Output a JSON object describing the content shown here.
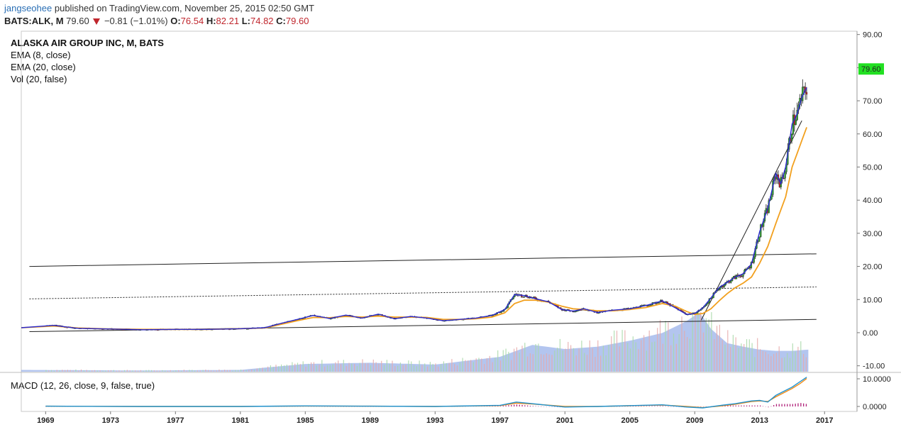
{
  "header": {
    "user": "jangseohee",
    "published": "published on TradingView.com, November 25, 2015 02:50 GMT"
  },
  "symbol": {
    "ticker": "BATS:ALK, M",
    "last": "79.60",
    "change": "−0.81 (−1.01%)",
    "o_label": "O:",
    "o": "76.54",
    "h_label": "H:",
    "h": "82.21",
    "l_label": "L:",
    "l": "74.82",
    "c_label": "C:",
    "c": "79.60"
  },
  "legend": {
    "title": "ALASKA AIR GROUP INC, M, BATS",
    "ema8": "EMA (8, close)",
    "ema20": "EMA (20, close)",
    "vol": "Vol (20, false)"
  },
  "macd_label": "MACD (12, 26, close, 9, false, true)",
  "colors": {
    "up": "#2e9c2e",
    "down": "#c0262d",
    "ema8": "#2b2bd0",
    "ema20": "#f2a01e",
    "volume_area": "#8aa6e6",
    "price_badge": "#22e022"
  },
  "chart_data": [
    {
      "type": "line",
      "title": "ALASKA AIR GROUP INC, M, BATS",
      "price_tag": "79.60",
      "ylim": [
        -12,
        91
      ],
      "xlim": [
        1967.5,
        2019
      ],
      "y_ticks": [
        "90.00",
        "80.00",
        "70.00",
        "60.00",
        "50.00",
        "40.00",
        "30.00",
        "20.00",
        "10.00",
        "0.00",
        "-10.00"
      ],
      "x_ticks": [
        "1969",
        "1973",
        "1977",
        "1981",
        "1985",
        "1989",
        "1993",
        "1997",
        "2001",
        "2005",
        "2009",
        "2013",
        "2017"
      ],
      "x": [
        1967.5,
        1969.5,
        1971,
        1973,
        1975,
        1977,
        1979,
        1981,
        1982.5,
        1983.5,
        1984.5,
        1985.5,
        1986.5,
        1987.5,
        1988.5,
        1989.5,
        1990.5,
        1991.5,
        1992.5,
        1993.5,
        1994.5,
        1995.5,
        1996.5,
        1997.3,
        1997.9,
        1998.5,
        1999.2,
        2000,
        2000.8,
        2001.5,
        2002.2,
        2003,
        2004,
        2005,
        2006,
        2007,
        2007.8,
        2008.5,
        2009,
        2009.5,
        2010,
        2010.5,
        2011,
        2011.5,
        2012,
        2012.5,
        2013,
        2013.5,
        2014,
        2014.3,
        2014.6,
        2015,
        2015.3,
        2015.6,
        2015.9
      ],
      "series": [
        {
          "name": "EMA (8, close)",
          "values": [
            1.5,
            2.2,
            1.3,
            1.1,
            0.9,
            1.0,
            1.0,
            1.2,
            1.5,
            2.8,
            4.0,
            5.2,
            4.3,
            5.3,
            4.4,
            5.6,
            4.2,
            4.9,
            4.4,
            3.6,
            4.0,
            4.4,
            5.2,
            7.0,
            11.5,
            11.2,
            10.2,
            9.3,
            7.0,
            6.5,
            7.2,
            6.1,
            6.8,
            7.2,
            8.2,
            9.6,
            7.5,
            5.5,
            5.8,
            7.5,
            10.5,
            13.6,
            15.2,
            16.8,
            17.8,
            20.8,
            30.5,
            37.5,
            48.0,
            45.0,
            50.0,
            63.0,
            66.0,
            71.0,
            74.0
          ]
        },
        {
          "name": "EMA (20, close)",
          "values": [
            1.5,
            2.0,
            1.4,
            1.1,
            1.0,
            1.0,
            1.0,
            1.2,
            1.4,
            2.5,
            3.6,
            4.6,
            4.5,
            4.9,
            4.7,
            5.0,
            4.7,
            4.7,
            4.6,
            4.0,
            4.0,
            4.2,
            4.7,
            6.0,
            8.8,
            9.8,
            9.8,
            9.2,
            8.0,
            7.2,
            7.0,
            6.6,
            6.6,
            7.0,
            7.6,
            8.8,
            8.0,
            6.4,
            5.5,
            5.8,
            7.2,
            9.6,
            11.8,
            13.6,
            15.0,
            16.8,
            21.0,
            26.0,
            33.0,
            37.0,
            41.0,
            50.0,
            54.0,
            58.0,
            62.0
          ]
        }
      ]
    },
    {
      "type": "area",
      "title": "Vol (20, false)",
      "x": [
        1967.5,
        1975,
        1981,
        1983,
        1985,
        1989,
        1993,
        1997,
        1999,
        2001,
        2003,
        2005,
        2007,
        2008.5,
        2009.3,
        2010,
        2011,
        2012,
        2013,
        2014,
        2015,
        2016
      ],
      "values": [
        0.03,
        0.02,
        0.03,
        0.08,
        0.13,
        0.15,
        0.12,
        0.25,
        0.45,
        0.38,
        0.42,
        0.52,
        0.65,
        0.85,
        1.0,
        0.72,
        0.48,
        0.42,
        0.37,
        0.35,
        0.35,
        0.37
      ]
    },
    {
      "type": "line",
      "title": "MACD (12, 26, close, 9, false, true)",
      "y_ticks": [
        "10.0000",
        "0.0000"
      ],
      "ylim": [
        -1.5,
        10.5
      ],
      "x": [
        1969,
        1975,
        1981,
        1985,
        1989,
        1993,
        1997,
        1998,
        1999,
        2001,
        2003,
        2005,
        2007,
        2008.5,
        2009.5,
        2010.5,
        2011.5,
        2012.5,
        2013,
        2013.5,
        2014,
        2014.5,
        2015,
        2015.5,
        2015.9
      ],
      "series": [
        {
          "name": "MACD",
          "values": [
            0.1,
            0,
            0,
            0.2,
            0.1,
            0,
            0.4,
            1.6,
            1.0,
            -0.2,
            0,
            0.3,
            0.6,
            -0.2,
            -0.5,
            0.3,
            1.0,
            2.0,
            2.2,
            1.6,
            4.0,
            5.5,
            7.0,
            9.0,
            10.6
          ]
        },
        {
          "name": "Signal",
          "values": [
            0.1,
            0,
            0,
            0.15,
            0.1,
            0,
            0.3,
            1.2,
            0.9,
            0,
            0,
            0.25,
            0.5,
            0,
            -0.4,
            0.1,
            0.8,
            1.8,
            2.0,
            1.8,
            3.5,
            5.0,
            6.5,
            8.3,
            10.1
          ]
        }
      ]
    }
  ]
}
